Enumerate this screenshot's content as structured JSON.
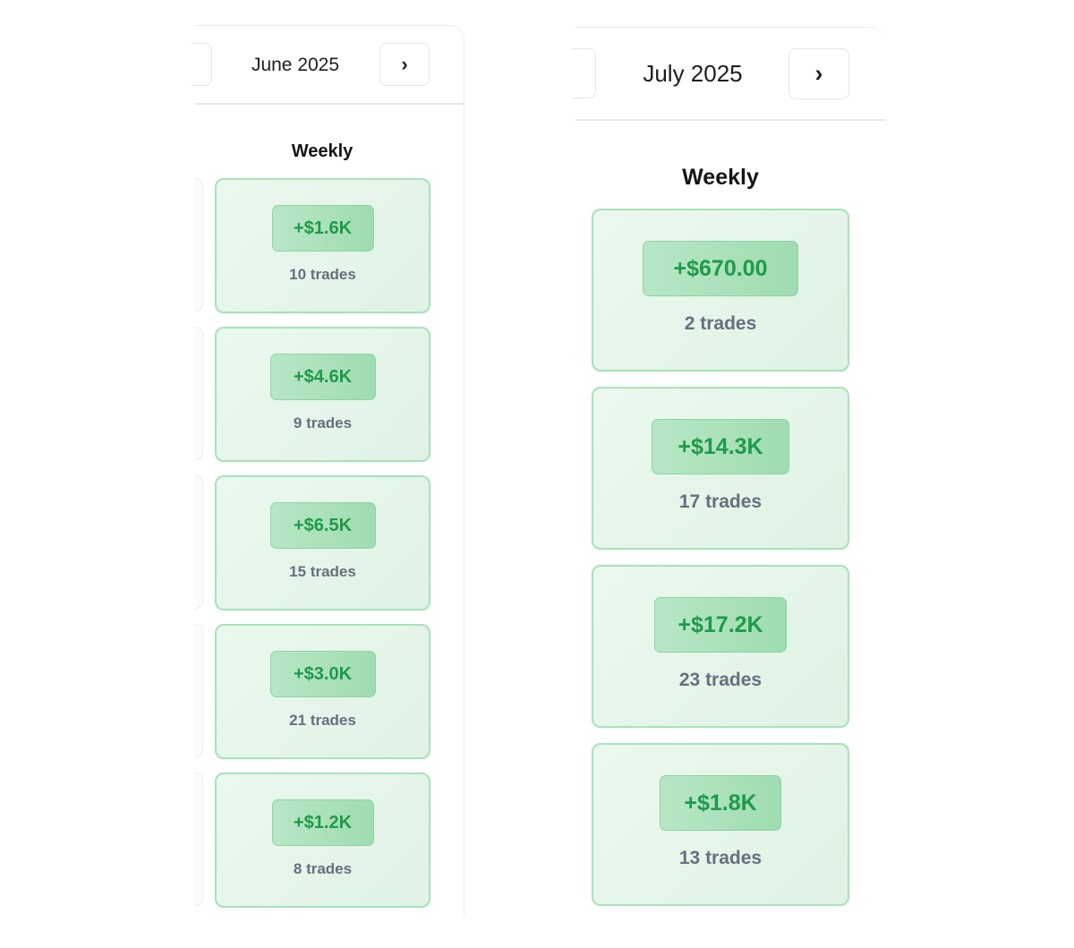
{
  "panels": [
    {
      "month": "June 2025",
      "weekly_label": "Weekly",
      "next_icon": "chevron-right-icon",
      "weeks": [
        {
          "pnl": "+$1.6K",
          "trades": "10 trades"
        },
        {
          "pnl": "+$4.6K",
          "trades": "9 trades"
        },
        {
          "pnl": "+$6.5K",
          "trades": "15 trades"
        },
        {
          "pnl": "+$3.0K",
          "trades": "21 trades"
        },
        {
          "pnl": "+$1.2K",
          "trades": "8 trades"
        }
      ]
    },
    {
      "month": "July 2025",
      "weekly_label": "Weekly",
      "next_icon": "chevron-right-icon",
      "weeks": [
        {
          "pnl": "+$670.00",
          "trades": "2 trades"
        },
        {
          "pnl": "+$14.3K",
          "trades": "17 trades"
        },
        {
          "pnl": "+$17.2K",
          "trades": "23 trades"
        },
        {
          "pnl": "+$1.8K",
          "trades": "13 trades"
        }
      ]
    }
  ],
  "colors": {
    "profit_text": "#1f9a4a",
    "card_border": "#a9e2b9",
    "card_bg": "#e6f6ea"
  }
}
